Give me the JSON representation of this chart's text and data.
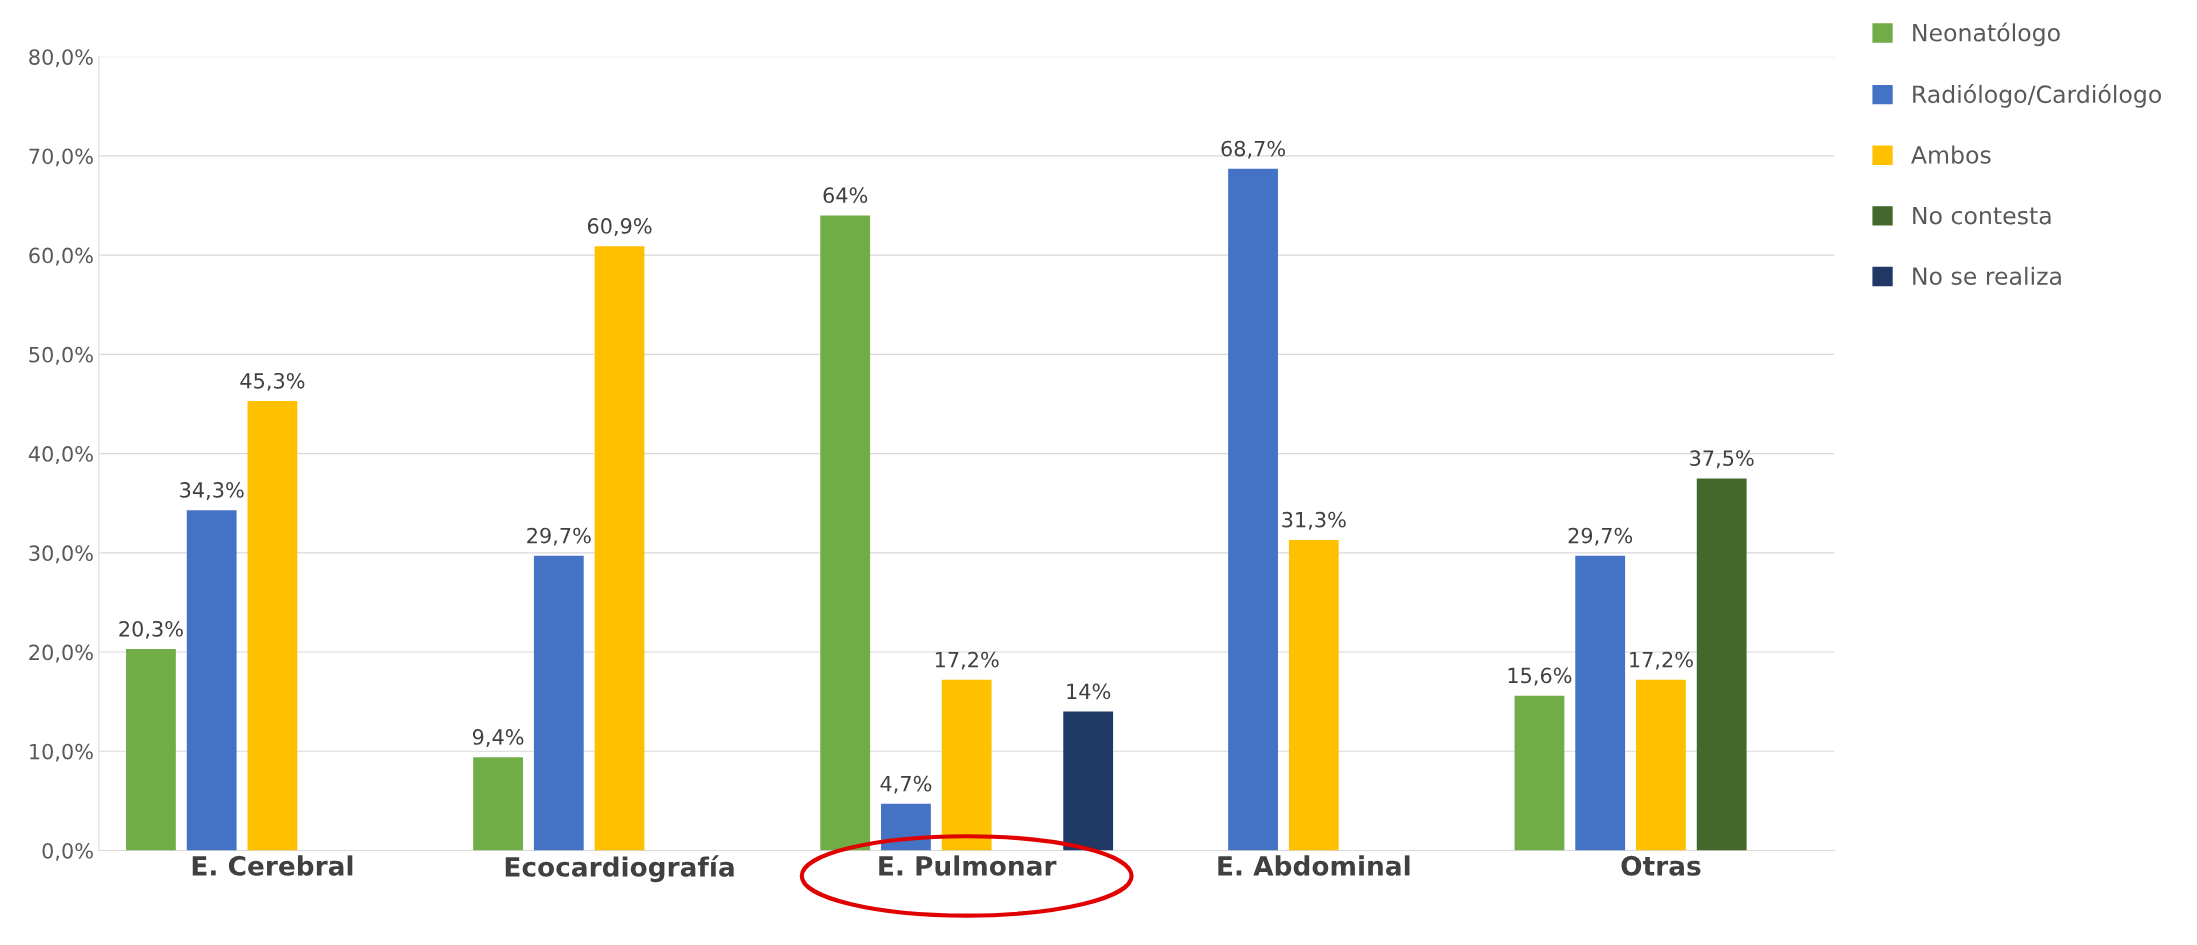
{
  "chart_data": {
    "type": "bar",
    "categories": [
      "E. Cerebral",
      "Ecocardiografía",
      "E. Pulmonar",
      "E. Abdominal",
      "Otras"
    ],
    "series": [
      {
        "name": "Neonatólogo",
        "color": "#70ad47",
        "values": [
          20.3,
          9.4,
          64,
          null,
          15.6
        ],
        "value_labels": [
          "20,3%",
          "9,4%",
          "64%",
          null,
          "15,6%"
        ]
      },
      {
        "name": "Radiólogo/Cardiólogo",
        "color": "#4472c4",
        "values": [
          34.3,
          29.7,
          4.7,
          68.7,
          29.7
        ],
        "value_labels": [
          "34,3%",
          "29,7%",
          "4,7%",
          "68,7%",
          "29,7%"
        ]
      },
      {
        "name": "Ambos",
        "color": "#ffc000",
        "values": [
          45.3,
          60.9,
          17.2,
          31.3,
          17.2
        ],
        "value_labels": [
          "45,3%",
          "60,9%",
          "17,2%",
          "31,3%",
          "17,2%"
        ]
      },
      {
        "name": "No contesta",
        "color": "#43682b",
        "values": [
          null,
          null,
          null,
          null,
          37.5
        ],
        "value_labels": [
          null,
          null,
          null,
          null,
          "37,5%"
        ]
      },
      {
        "name": "No se realiza",
        "color": "#203864",
        "values": [
          null,
          null,
          14,
          null,
          null
        ],
        "value_labels": [
          null,
          null,
          "14%",
          null,
          null
        ]
      }
    ],
    "ylim": [
      0,
      80
    ],
    "yticks": [
      {
        "value": 0,
        "label": "0,0%"
      },
      {
        "value": 10,
        "label": "10,0%"
      },
      {
        "value": 20,
        "label": "20,0%"
      },
      {
        "value": 30,
        "label": "30,0%"
      },
      {
        "value": 40,
        "label": "40,0%"
      },
      {
        "value": 50,
        "label": "50,0%"
      },
      {
        "value": 60,
        "label": "60,0%"
      },
      {
        "value": 70,
        "label": "70,0%"
      },
      {
        "value": 80,
        "label": "80,0%"
      }
    ],
    "grid": "y",
    "legend": "top right"
  }
}
